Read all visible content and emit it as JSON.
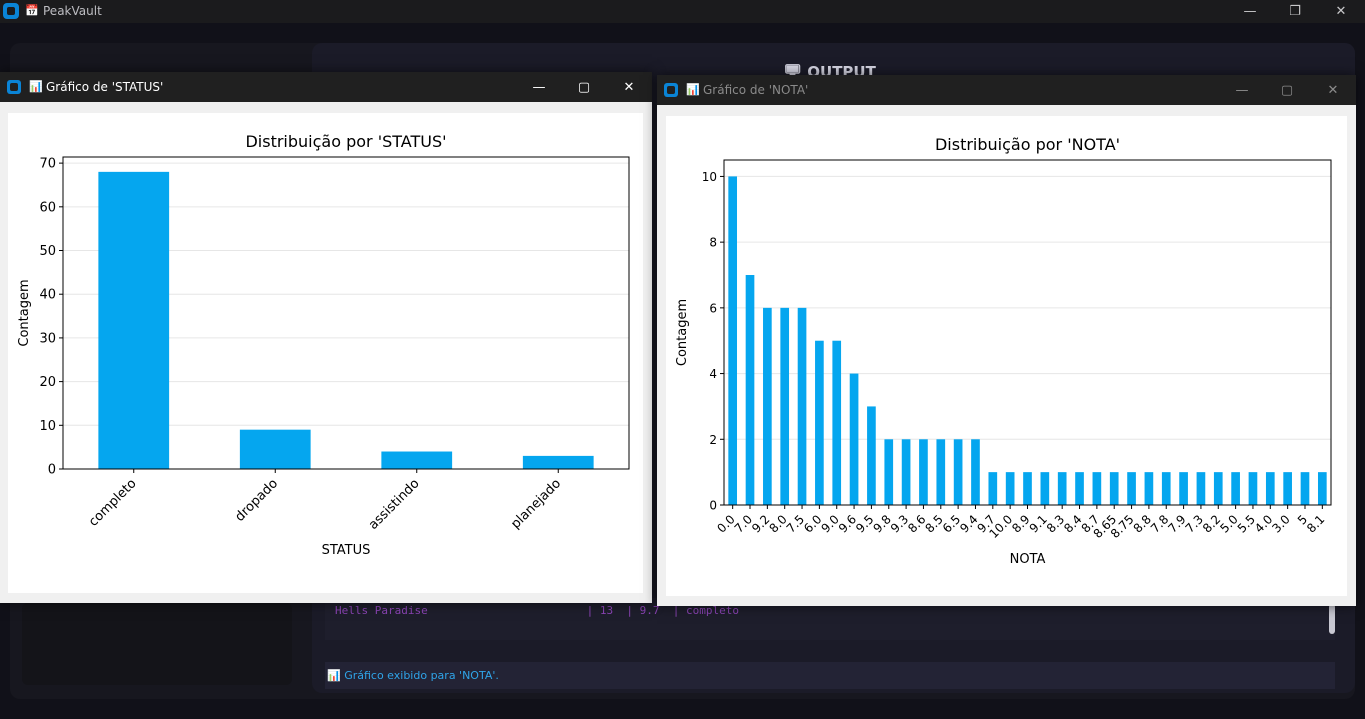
{
  "app": {
    "icon": "app-logo-icon",
    "title_emoji": "📅",
    "title": "PeakVault",
    "minimize": "—",
    "maximize": "❐",
    "close": "✕"
  },
  "output_panel": {
    "title": "🖥 OUTPUT",
    "terminal_row": "Hells Paradise                        | 13  | 9.7  | completo"
  },
  "status_bar": {
    "message": "📊 Gráfico exibido para 'NOTA'."
  },
  "colors": {
    "bar": "#05a6ef",
    "accent": "#0a84d6",
    "status_text": "#2fa4e8",
    "terminal_text": "#8b44b5"
  },
  "windows": [
    {
      "emoji": "📊",
      "title": "Gráfico de 'STATUS'",
      "minimize": "—",
      "maximize": "▢",
      "close": "✕"
    },
    {
      "emoji": "📊",
      "title": "Gráfico de 'NOTA'",
      "minimize": "—",
      "maximize": "▢",
      "close": "✕"
    }
  ],
  "chart_data": [
    {
      "type": "bar",
      "title": "Distribuição por 'STATUS'",
      "xlabel": "STATUS",
      "ylabel": "Contagem",
      "categories": [
        "completo",
        "dropado",
        "assistindo",
        "planejado"
      ],
      "values": [
        68,
        9,
        4,
        3
      ],
      "ylim": [
        0,
        71.4
      ],
      "yticks": [
        0,
        10,
        20,
        30,
        40,
        50,
        60,
        70
      ],
      "grid": "horizontal",
      "legend": "none"
    },
    {
      "type": "bar",
      "title": "Distribuição por 'NOTA'",
      "xlabel": "NOTA",
      "ylabel": "Contagem",
      "categories": [
        "0.0",
        "7.0",
        "9.2",
        "8.0",
        "7.5",
        "6.0",
        "9.0",
        "9.6",
        "9.5",
        "9.8",
        "9.3",
        "8.6",
        "8.5",
        "6.5",
        "9.4",
        "9.7",
        "10.0",
        "8.9",
        "9.1",
        "8.3",
        "8.4",
        "8.7",
        "8.65",
        "8.75",
        "8.8",
        "7.8",
        "7.9",
        "7.3",
        "8.2",
        "5.0",
        "5.5",
        "4.0",
        "3.0",
        "5",
        "8.1"
      ],
      "values": [
        10,
        7,
        6,
        6,
        6,
        5,
        5,
        4,
        3,
        2,
        2,
        2,
        2,
        2,
        2,
        1,
        1,
        1,
        1,
        1,
        1,
        1,
        1,
        1,
        1,
        1,
        1,
        1,
        1,
        1,
        1,
        1,
        1,
        1,
        1
      ],
      "ylim": [
        0,
        10.5
      ],
      "yticks": [
        0,
        2,
        4,
        6,
        8,
        10
      ],
      "grid": "horizontal",
      "legend": "none"
    }
  ]
}
